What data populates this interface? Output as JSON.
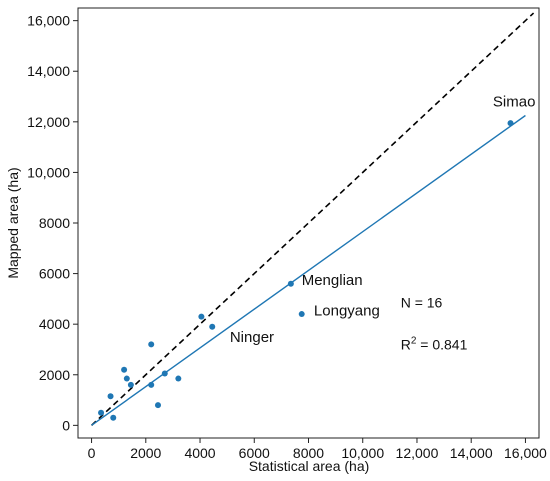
{
  "chart_data": {
    "type": "scatter",
    "xlabel": "Statistical area (ha)",
    "ylabel": "Mapped area (ha)",
    "xlim": [
      -500,
      16500
    ],
    "ylim": [
      -500,
      16500
    ],
    "x_ticks": [
      0,
      2000,
      4000,
      6000,
      8000,
      10000,
      12000,
      14000,
      16000
    ],
    "x_tick_labels": [
      "0",
      "2000",
      "4000",
      "6000",
      "8000",
      "10,000",
      "12,000",
      "14,000",
      "16,000"
    ],
    "y_ticks": [
      0,
      2000,
      4000,
      6000,
      8000,
      10000,
      12000,
      14000,
      16000
    ],
    "y_tick_labels": [
      "0",
      "2000",
      "4000",
      "6000",
      "8000",
      "10,000",
      "12,000",
      "14,000",
      "16,000"
    ],
    "grid": false,
    "point_color": "#1f77b4",
    "fit_color": "#1f77b4",
    "reference_color": "#000000",
    "points": [
      {
        "x": 15450,
        "y": 11950
      },
      {
        "x": 7350,
        "y": 5600
      },
      {
        "x": 7750,
        "y": 4400
      },
      {
        "x": 4050,
        "y": 4300
      },
      {
        "x": 4450,
        "y": 3900
      },
      {
        "x": 2200,
        "y": 3200
      },
      {
        "x": 3200,
        "y": 1850
      },
      {
        "x": 2700,
        "y": 2050
      },
      {
        "x": 2200,
        "y": 1600
      },
      {
        "x": 2450,
        "y": 800
      },
      {
        "x": 1200,
        "y": 2200
      },
      {
        "x": 1300,
        "y": 1850
      },
      {
        "x": 1450,
        "y": 1600
      },
      {
        "x": 700,
        "y": 1150
      },
      {
        "x": 800,
        "y": 300
      },
      {
        "x": 350,
        "y": 500
      }
    ],
    "fit_line": {
      "x": [
        0,
        16000
      ],
      "y": [
        0,
        12250
      ]
    },
    "reference_line": {
      "x": [
        0,
        16300
      ],
      "y": [
        0,
        16300
      ]
    },
    "annotations": [
      {
        "text": "Simao",
        "x": 14800,
        "y": 12600
      },
      {
        "text": "Menglian",
        "x": 7750,
        "y": 5550
      },
      {
        "text": "Longyang",
        "x": 8200,
        "y": 4350
      },
      {
        "text": "Ninger",
        "x": 5100,
        "y": 3300
      }
    ],
    "stats": {
      "n_text": "N = 16",
      "r2_prefix": "R",
      "r2_sup": "2",
      "r2_value": " = 0.841",
      "n_pos": {
        "x": 11400,
        "y": 4650
      },
      "r2_pos": {
        "x": 11400,
        "y": 3000
      }
    }
  }
}
